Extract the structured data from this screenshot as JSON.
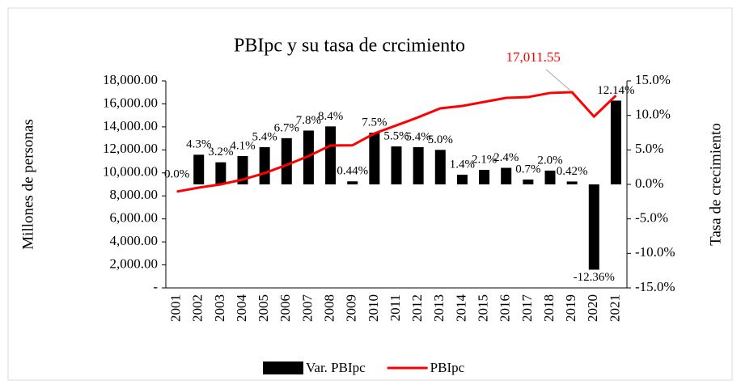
{
  "chart_data": {
    "type": "combo",
    "title": "PBIpc y su tasa de crcimiento",
    "y_label": "Millones de personas",
    "y2_label": "Tasa de crecimiento",
    "categories": [
      "2001",
      "2002",
      "2003",
      "2004",
      "2005",
      "2006",
      "2007",
      "2008",
      "2009",
      "2010",
      "2011",
      "2012",
      "2013",
      "2014",
      "2015",
      "2016",
      "2017",
      "2018",
      "2019",
      "2020",
      "2021"
    ],
    "ylim": [
      0,
      18000
    ],
    "yticks": [
      {
        "value": 0,
        "label": "-"
      },
      {
        "value": 2000,
        "label": "2,000.00"
      },
      {
        "value": 4000,
        "label": "4,000.00"
      },
      {
        "value": 6000,
        "label": "6,000.00"
      },
      {
        "value": 8000,
        "label": "8,000.00"
      },
      {
        "value": 10000,
        "label": "10,000.00"
      },
      {
        "value": 12000,
        "label": "12,000.00"
      },
      {
        "value": 14000,
        "label": "14,000.00"
      },
      {
        "value": 16000,
        "label": "16,000.00"
      },
      {
        "value": 18000,
        "label": "18,000.00"
      }
    ],
    "y2lim": [
      -15,
      15
    ],
    "y2ticks": [
      {
        "value": -15,
        "label": "-15.0%"
      },
      {
        "value": -10,
        "label": "-10.0%"
      },
      {
        "value": -5,
        "label": "-5.0%"
      },
      {
        "value": 0,
        "label": "0.0%"
      },
      {
        "value": 5,
        "label": "5.0%"
      },
      {
        "value": 10,
        "label": "10.0%"
      },
      {
        "value": 15,
        "label": "15.0%"
      }
    ],
    "legend": "bottom",
    "series": [
      {
        "name": "Var. PBIpc",
        "type": "bar",
        "axis": "y2",
        "color": "#000000",
        "values": [
          0.0,
          4.3,
          3.2,
          4.1,
          5.4,
          6.7,
          7.8,
          8.4,
          0.44,
          7.5,
          5.5,
          5.4,
          5.0,
          1.4,
          2.1,
          2.4,
          0.7,
          2.0,
          0.42,
          -12.36,
          12.14
        ],
        "value_labels": [
          "0.0%",
          "4.3%",
          "3.2%",
          "4.1%",
          "5.4%",
          "6.7%",
          "7.8%",
          "8.4%",
          "0.44%",
          "7.5%",
          "5.5%",
          "5.4%",
          "5.0%",
          "1.4%",
          "2.1%",
          "2.4%",
          "0.7%",
          "2.0%",
          "0.42%",
          "-12.36%",
          "12.14%"
        ]
      },
      {
        "name": "PBIpc",
        "type": "line",
        "color": "#ff0000",
        "values": [
          8370,
          8720,
          9000,
          9420,
          9980,
          10690,
          11460,
          12380,
          12400,
          13430,
          14130,
          14840,
          15610,
          15820,
          16170,
          16520,
          16590,
          16950,
          17011.55,
          14900,
          16730
        ],
        "value_labels": [
          null,
          null,
          null,
          null,
          null,
          null,
          null,
          null,
          null,
          null,
          null,
          null,
          null,
          null,
          null,
          null,
          null,
          null,
          "17,011.55",
          null,
          null
        ]
      }
    ]
  }
}
